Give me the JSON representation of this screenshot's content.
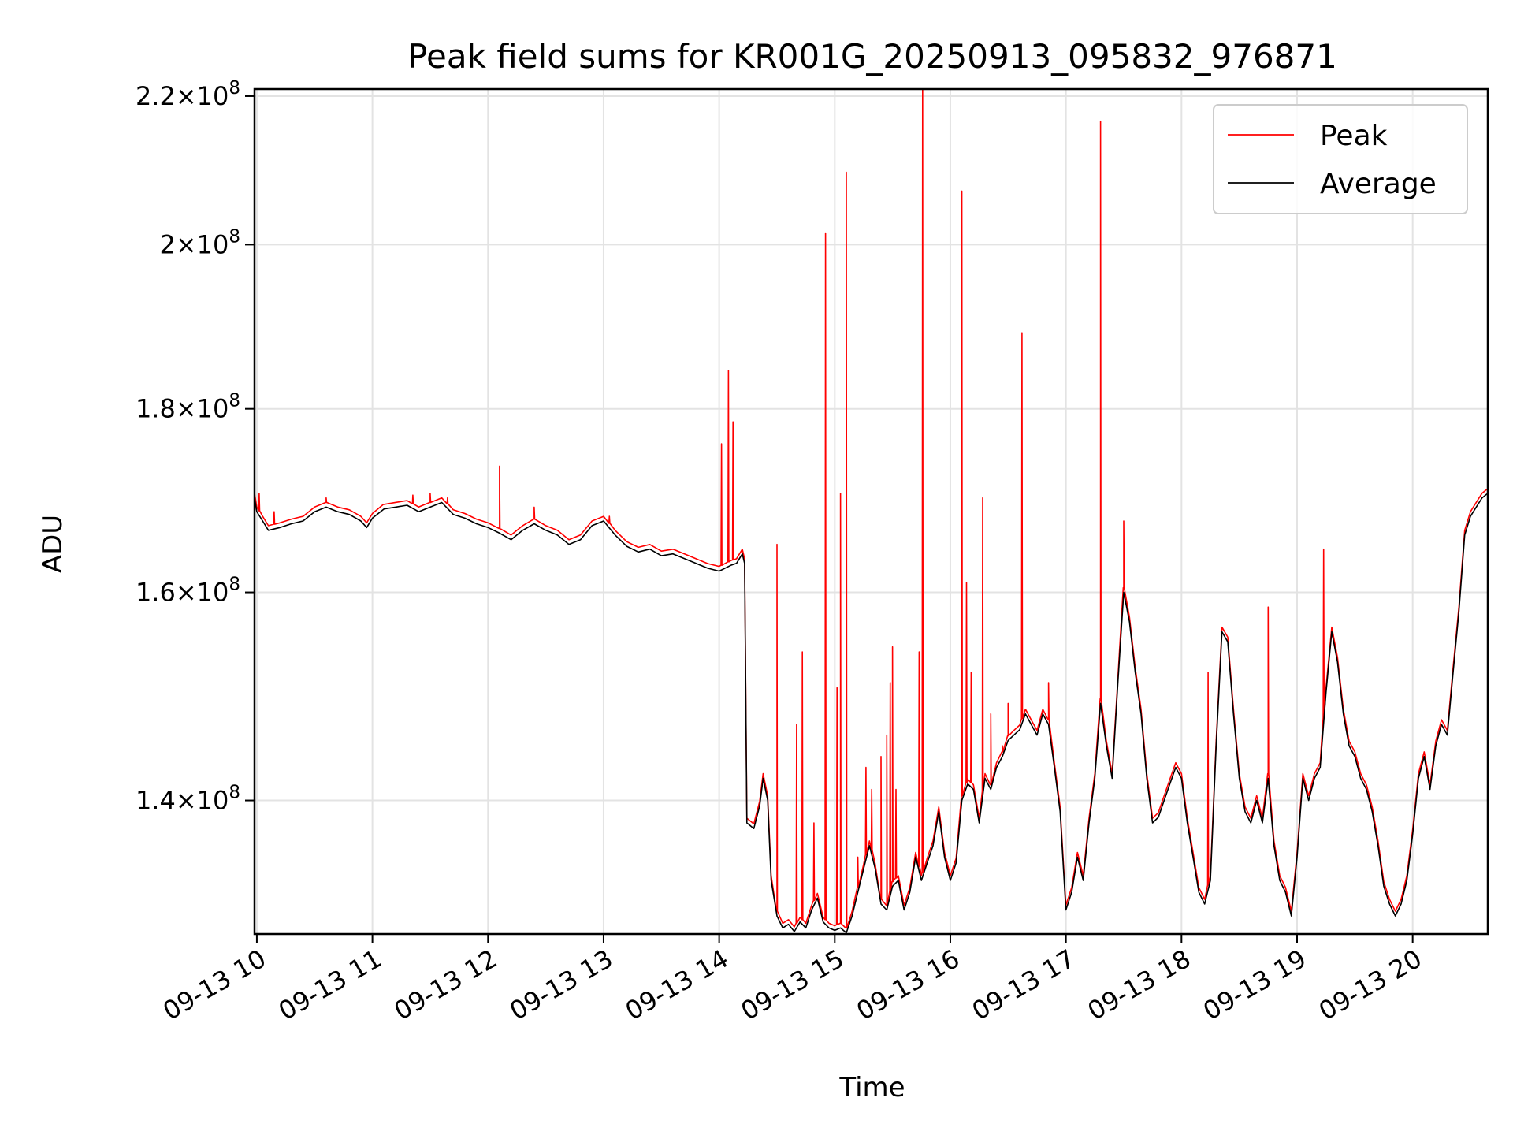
{
  "chart_data": {
    "type": "line",
    "title": "Peak field sums for KR001G_20250913_095832_976871",
    "xlabel": "Time",
    "ylabel": "ADU",
    "x_unit": "hour of 2025-09-13",
    "xlim": [
      9.98,
      20.65
    ],
    "ylim": [
      128500000,
      221000000
    ],
    "y_scale": "log",
    "grid": true,
    "legend_position": "top-right",
    "x_ticks": [
      {
        "value": 10,
        "label": "09-13 10"
      },
      {
        "value": 11,
        "label": "09-13 11"
      },
      {
        "value": 12,
        "label": "09-13 12"
      },
      {
        "value": 13,
        "label": "09-13 13"
      },
      {
        "value": 14,
        "label": "09-13 14"
      },
      {
        "value": 15,
        "label": "09-13 15"
      },
      {
        "value": 16,
        "label": "09-13 16"
      },
      {
        "value": 17,
        "label": "09-13 17"
      },
      {
        "value": 18,
        "label": "09-13 18"
      },
      {
        "value": 19,
        "label": "09-13 19"
      },
      {
        "value": 20,
        "label": "09-13 20"
      }
    ],
    "y_ticks": [
      {
        "value": 140000000,
        "mantissa": "1.4",
        "exponent": "8"
      },
      {
        "value": 160000000,
        "mantissa": "1.6",
        "exponent": "8"
      },
      {
        "value": 180000000,
        "mantissa": "1.8",
        "exponent": "8"
      },
      {
        "value": 200000000,
        "mantissa": "2",
        "exponent": "8"
      },
      {
        "value": 220000000,
        "mantissa": "2.2",
        "exponent": "8"
      }
    ],
    "series": [
      {
        "name": "Peak",
        "color": "#ff0000",
        "spikes": [
          [
            10.02,
            170500000.0
          ],
          [
            10.15,
            168500000.0
          ],
          [
            10.6,
            170000000.0
          ],
          [
            11.1,
            169300000.0
          ],
          [
            11.35,
            170300000.0
          ],
          [
            11.5,
            170500000.0
          ],
          [
            11.65,
            170000000.0
          ],
          [
            12.1,
            173500000.0
          ],
          [
            12.4,
            169000000.0
          ],
          [
            13.05,
            168000000.0
          ],
          [
            14.02,
            176000000.0
          ],
          [
            14.08,
            184500000.0
          ],
          [
            14.12,
            178500000.0
          ],
          [
            14.5,
            165000000.0
          ],
          [
            14.67,
            147000000.0
          ],
          [
            14.72,
            154000000.0
          ],
          [
            14.82,
            138000000.0
          ],
          [
            14.92,
            201500000.0
          ],
          [
            15.02,
            150500000.0
          ],
          [
            15.05,
            170500000.0
          ],
          [
            15.1,
            209500000.0
          ],
          [
            15.2,
            135000000.0
          ],
          [
            15.27,
            143000000.0
          ],
          [
            15.32,
            141000000.0
          ],
          [
            15.4,
            144000000.0
          ],
          [
            15.45,
            146000000.0
          ],
          [
            15.48,
            151000000.0
          ],
          [
            15.5,
            154500000.0
          ],
          [
            15.53,
            141000000.0
          ],
          [
            15.73,
            154000000.0
          ],
          [
            15.76,
            221000000.0
          ],
          [
            16.1,
            207000000.0
          ],
          [
            16.14,
            161000000.0
          ],
          [
            16.18,
            152000000.0
          ],
          [
            16.28,
            170000000.0
          ],
          [
            16.35,
            148000000.0
          ],
          [
            16.45,
            145000000.0
          ],
          [
            16.5,
            149000000.0
          ],
          [
            16.62,
            189000000.0
          ],
          [
            16.85,
            151000000.0
          ],
          [
            17.3,
            216500000.0
          ],
          [
            17.5,
            167500000.0
          ],
          [
            18.23,
            152000000.0
          ],
          [
            18.75,
            158500000.0
          ],
          [
            19.23,
            164500000.0
          ]
        ]
      },
      {
        "name": "Average",
        "color": "#000000",
        "points": [
          [
            9.98,
            170000000.0
          ],
          [
            10.0,
            168500000.0
          ],
          [
            10.05,
            167500000.0
          ],
          [
            10.1,
            166500000.0
          ],
          [
            10.2,
            166800000.0
          ],
          [
            10.3,
            167200000.0
          ],
          [
            10.4,
            167500000.0
          ],
          [
            10.5,
            168500000.0
          ],
          [
            10.6,
            169000000.0
          ],
          [
            10.7,
            168500000.0
          ],
          [
            10.8,
            168200000.0
          ],
          [
            10.9,
            167500000.0
          ],
          [
            10.95,
            166800000.0
          ],
          [
            11.0,
            167800000.0
          ],
          [
            11.1,
            168800000.0
          ],
          [
            11.2,
            169000000.0
          ],
          [
            11.3,
            169200000.0
          ],
          [
            11.4,
            168500000.0
          ],
          [
            11.5,
            169000000.0
          ],
          [
            11.6,
            169500000.0
          ],
          [
            11.7,
            168200000.0
          ],
          [
            11.8,
            167800000.0
          ],
          [
            11.9,
            167200000.0
          ],
          [
            12.0,
            166800000.0
          ],
          [
            12.1,
            166200000.0
          ],
          [
            12.2,
            165500000.0
          ],
          [
            12.3,
            166500000.0
          ],
          [
            12.4,
            167200000.0
          ],
          [
            12.5,
            166500000.0
          ],
          [
            12.6,
            166000000.0
          ],
          [
            12.7,
            165000000.0
          ],
          [
            12.8,
            165500000.0
          ],
          [
            12.9,
            167000000.0
          ],
          [
            13.0,
            167500000.0
          ],
          [
            13.1,
            166000000.0
          ],
          [
            13.2,
            164800000.0
          ],
          [
            13.3,
            164200000.0
          ],
          [
            13.4,
            164500000.0
          ],
          [
            13.5,
            163800000.0
          ],
          [
            13.6,
            164000000.0
          ],
          [
            13.7,
            163500000.0
          ],
          [
            13.8,
            163000000.0
          ],
          [
            13.9,
            162500000.0
          ],
          [
            14.0,
            162200000.0
          ],
          [
            14.1,
            162800000.0
          ],
          [
            14.15,
            163000000.0
          ],
          [
            14.2,
            164000000.0
          ],
          [
            14.22,
            163000000.0
          ],
          [
            14.24,
            138000000.0
          ],
          [
            14.3,
            137500000.0
          ],
          [
            14.35,
            139500000.0
          ],
          [
            14.38,
            142000000.0
          ],
          [
            14.42,
            140000000.0
          ],
          [
            14.45,
            133000000.0
          ],
          [
            14.5,
            130000000.0
          ],
          [
            14.55,
            129000000.0
          ],
          [
            14.6,
            129300000.0
          ],
          [
            14.65,
            128700000.0
          ],
          [
            14.7,
            129500000.0
          ],
          [
            14.75,
            129000000.0
          ],
          [
            14.8,
            130500000.0
          ],
          [
            14.85,
            131500000.0
          ],
          [
            14.9,
            129500000.0
          ],
          [
            14.95,
            129000000.0
          ],
          [
            15.0,
            128800000.0
          ],
          [
            15.05,
            129000000.0
          ],
          [
            15.1,
            128600000.0
          ],
          [
            15.15,
            130000000.0
          ],
          [
            15.2,
            132000000.0
          ],
          [
            15.25,
            134000000.0
          ],
          [
            15.3,
            136000000.0
          ],
          [
            15.35,
            134000000.0
          ],
          [
            15.4,
            131000000.0
          ],
          [
            15.45,
            130500000.0
          ],
          [
            15.5,
            132500000.0
          ],
          [
            15.55,
            133000000.0
          ],
          [
            15.6,
            130500000.0
          ],
          [
            15.65,
            132000000.0
          ],
          [
            15.7,
            135000000.0
          ],
          [
            15.75,
            133000000.0
          ],
          [
            15.8,
            134500000.0
          ],
          [
            15.85,
            136000000.0
          ],
          [
            15.9,
            139000000.0
          ],
          [
            15.95,
            135000000.0
          ],
          [
            16.0,
            133000000.0
          ],
          [
            16.05,
            134500000.0
          ],
          [
            16.1,
            140000000.0
          ],
          [
            16.15,
            141500000.0
          ],
          [
            16.2,
            141000000.0
          ],
          [
            16.25,
            138000000.0
          ],
          [
            16.3,
            142000000.0
          ],
          [
            16.35,
            141000000.0
          ],
          [
            16.4,
            143000000.0
          ],
          [
            16.45,
            144000000.0
          ],
          [
            16.5,
            145500000.0
          ],
          [
            16.55,
            146000000.0
          ],
          [
            16.6,
            146500000.0
          ],
          [
            16.65,
            148000000.0
          ],
          [
            16.7,
            147000000.0
          ],
          [
            16.75,
            146000000.0
          ],
          [
            16.8,
            148000000.0
          ],
          [
            16.85,
            147000000.0
          ],
          [
            16.9,
            143000000.0
          ],
          [
            16.95,
            139000000.0
          ],
          [
            17.0,
            130500000.0
          ],
          [
            17.05,
            132000000.0
          ],
          [
            17.1,
            135000000.0
          ],
          [
            17.15,
            133000000.0
          ],
          [
            17.2,
            138000000.0
          ],
          [
            17.25,
            142000000.0
          ],
          [
            17.3,
            149000000.0
          ],
          [
            17.35,
            145000000.0
          ],
          [
            17.4,
            142000000.0
          ],
          [
            17.45,
            151000000.0
          ],
          [
            17.5,
            160000000.0
          ],
          [
            17.55,
            157000000.0
          ],
          [
            17.6,
            152000000.0
          ],
          [
            17.65,
            148000000.0
          ],
          [
            17.7,
            142000000.0
          ],
          [
            17.75,
            138000000.0
          ],
          [
            17.8,
            138500000.0
          ],
          [
            17.85,
            140000000.0
          ],
          [
            17.9,
            141500000.0
          ],
          [
            17.95,
            143000000.0
          ],
          [
            18.0,
            142000000.0
          ],
          [
            18.05,
            138000000.0
          ],
          [
            18.1,
            135000000.0
          ],
          [
            18.15,
            132000000.0
          ],
          [
            18.2,
            131000000.0
          ],
          [
            18.25,
            133000000.0
          ],
          [
            18.3,
            145000000.0
          ],
          [
            18.35,
            156000000.0
          ],
          [
            18.4,
            155000000.0
          ],
          [
            18.45,
            148000000.0
          ],
          [
            18.5,
            142000000.0
          ],
          [
            18.55,
            139000000.0
          ],
          [
            18.6,
            138000000.0
          ],
          [
            18.65,
            140000000.0
          ],
          [
            18.7,
            138000000.0
          ],
          [
            18.75,
            142000000.0
          ],
          [
            18.8,
            136000000.0
          ],
          [
            18.85,
            133000000.0
          ],
          [
            18.9,
            132000000.0
          ],
          [
            18.95,
            130000000.0
          ],
          [
            19.0,
            135000000.0
          ],
          [
            19.05,
            142000000.0
          ],
          [
            19.1,
            140000000.0
          ],
          [
            19.15,
            142000000.0
          ],
          [
            19.2,
            143000000.0
          ],
          [
            19.25,
            150000000.0
          ],
          [
            19.3,
            156000000.0
          ],
          [
            19.35,
            153000000.0
          ],
          [
            19.4,
            148000000.0
          ],
          [
            19.45,
            145000000.0
          ],
          [
            19.5,
            144000000.0
          ],
          [
            19.55,
            142000000.0
          ],
          [
            19.6,
            141000000.0
          ],
          [
            19.65,
            139000000.0
          ],
          [
            19.7,
            136000000.0
          ],
          [
            19.75,
            132500000.0
          ],
          [
            19.8,
            131000000.0
          ],
          [
            19.85,
            130000000.0
          ],
          [
            19.9,
            131000000.0
          ],
          [
            19.95,
            133000000.0
          ],
          [
            20.0,
            137000000.0
          ],
          [
            20.05,
            142000000.0
          ],
          [
            20.1,
            144000000.0
          ],
          [
            20.15,
            141000000.0
          ],
          [
            20.2,
            145000000.0
          ],
          [
            20.25,
            147000000.0
          ],
          [
            20.3,
            146000000.0
          ],
          [
            20.35,
            152000000.0
          ],
          [
            20.4,
            158000000.0
          ],
          [
            20.45,
            166000000.0
          ],
          [
            20.5,
            168000000.0
          ],
          [
            20.55,
            169000000.0
          ],
          [
            20.6,
            170000000.0
          ],
          [
            20.65,
            170500000.0
          ]
        ]
      }
    ]
  }
}
